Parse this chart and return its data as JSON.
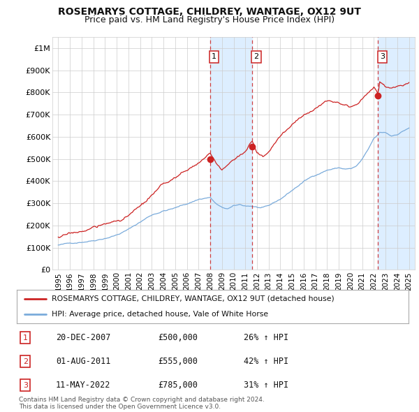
{
  "title": "ROSEMARYS COTTAGE, CHILDREY, WANTAGE, OX12 9UT",
  "subtitle": "Price paid vs. HM Land Registry's House Price Index (HPI)",
  "title_fontsize": 10,
  "subtitle_fontsize": 9,
  "ylabel_ticks": [
    "£0",
    "£100K",
    "£200K",
    "£300K",
    "£400K",
    "£500K",
    "£600K",
    "£700K",
    "£800K",
    "£900K",
    "£1M"
  ],
  "ytick_values": [
    0,
    100000,
    200000,
    300000,
    400000,
    500000,
    600000,
    700000,
    800000,
    900000,
    1000000
  ],
  "ylim": [
    0,
    1050000
  ],
  "xlim_start": 1994.5,
  "xlim_end": 2025.5,
  "background_color": "#ffffff",
  "plot_bg_color": "#ffffff",
  "grid_color": "#cccccc",
  "sale_color": "#cc2222",
  "hpi_color": "#7aabdb",
  "shade_color": "#ddeeff",
  "transactions": [
    {
      "num": 1,
      "date_str": "20-DEC-2007",
      "price": 500000,
      "pct": "26%",
      "dir": "↑",
      "x": 2007.97
    },
    {
      "num": 2,
      "date_str": "01-AUG-2011",
      "price": 555000,
      "pct": "42%",
      "dir": "↑",
      "x": 2011.58
    },
    {
      "num": 3,
      "date_str": "11-MAY-2022",
      "price": 785000,
      "pct": "31%",
      "dir": "↑",
      "x": 2022.36
    }
  ],
  "legend_sale_label": "ROSEMARYS COTTAGE, CHILDREY, WANTAGE, OX12 9UT (detached house)",
  "legend_hpi_label": "HPI: Average price, detached house, Vale of White Horse",
  "table_rows": [
    {
      "num": 1,
      "date": "20-DEC-2007",
      "price": "£500,000",
      "pct": "26% ↑ HPI"
    },
    {
      "num": 2,
      "date": "01-AUG-2011",
      "price": "£555,000",
      "pct": "42% ↑ HPI"
    },
    {
      "num": 3,
      "date": "11-MAY-2022",
      "price": "£785,000",
      "pct": "31% ↑ HPI"
    }
  ],
  "footer": "Contains HM Land Registry data © Crown copyright and database right 2024.\nThis data is licensed under the Open Government Licence v3.0."
}
